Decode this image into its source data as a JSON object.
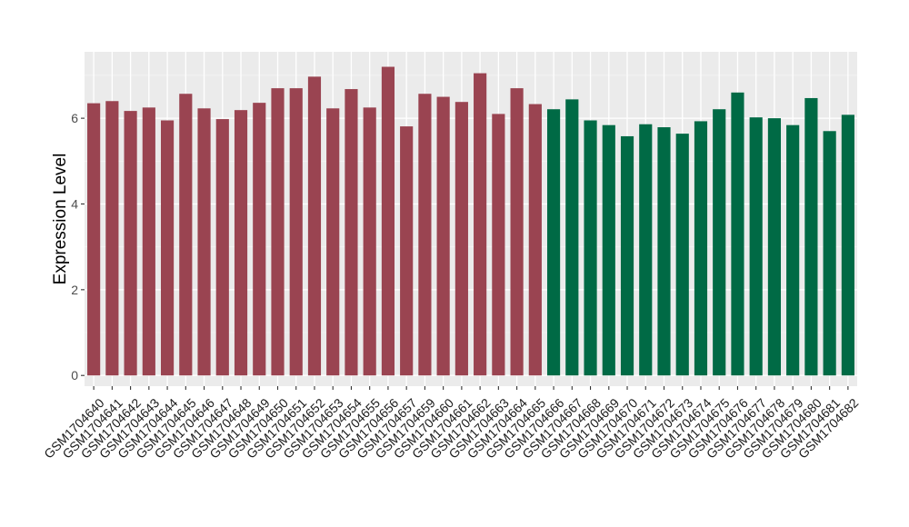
{
  "colors": {
    "panel_background": "#ebebeb",
    "grid_major": "#ffffff",
    "grid_minor": "#f4f4f4",
    "group_1_bar": "#9a4451",
    "group_2_bar": "#006a45"
  },
  "chart_data": {
    "type": "bar",
    "title": "",
    "xlabel": "",
    "ylabel": "Expression Level",
    "ylim": [
      -0.25,
      7.55
    ],
    "yticks": [
      0,
      2,
      4,
      6
    ],
    "grid": true,
    "legend": "none",
    "categories": [
      "GSM1704640",
      "GSM1704641",
      "GSM1704642",
      "GSM1704643",
      "GSM1704644",
      "GSM1704645",
      "GSM1704646",
      "GSM1704647",
      "GSM1704648",
      "GSM1704649",
      "GSM1704650",
      "GSM1704651",
      "GSM1704652",
      "GSM1704653",
      "GSM1704654",
      "GSM1704655",
      "GSM1704656",
      "GSM1704657",
      "GSM1704659",
      "GSM1704660",
      "GSM1704661",
      "GSM1704662",
      "GSM1704663",
      "GSM1704664",
      "GSM1704665",
      "GSM1704666",
      "GSM1704667",
      "GSM1704668",
      "GSM1704669",
      "GSM1704670",
      "GSM1704671",
      "GSM1704672",
      "GSM1704673",
      "GSM1704674",
      "GSM1704675",
      "GSM1704676",
      "GSM1704677",
      "GSM1704678",
      "GSM1704679",
      "GSM1704680",
      "GSM1704681",
      "GSM1704682"
    ],
    "values": [
      6.35,
      6.4,
      6.17,
      6.25,
      5.95,
      6.57,
      6.23,
      5.98,
      6.19,
      6.36,
      6.7,
      6.7,
      6.97,
      6.23,
      6.68,
      6.25,
      7.2,
      5.81,
      6.57,
      6.5,
      6.38,
      7.05,
      6.1,
      6.7,
      6.33,
      6.21,
      6.44,
      5.95,
      5.84,
      5.58,
      5.86,
      5.79,
      5.64,
      5.93,
      6.21,
      6.6,
      6.02,
      6.0,
      5.84,
      6.47,
      5.7,
      6.08
    ],
    "groups": [
      1,
      1,
      1,
      1,
      1,
      1,
      1,
      1,
      1,
      1,
      1,
      1,
      1,
      1,
      1,
      1,
      1,
      1,
      1,
      1,
      1,
      1,
      1,
      1,
      1,
      2,
      2,
      2,
      2,
      2,
      2,
      2,
      2,
      2,
      2,
      2,
      2,
      2,
      2,
      2,
      2,
      2
    ]
  }
}
